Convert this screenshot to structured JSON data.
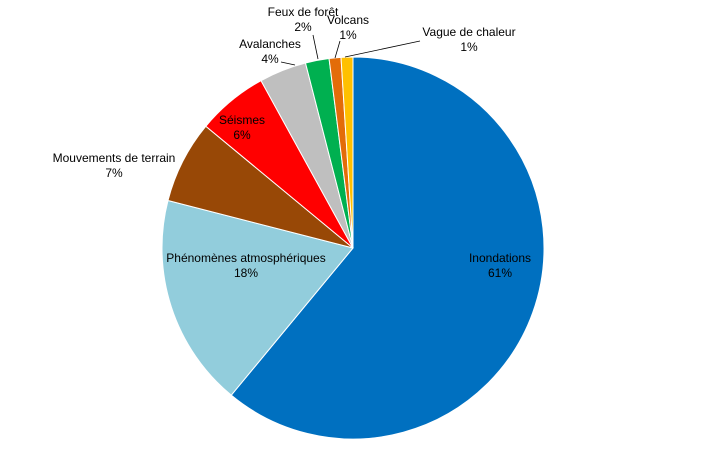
{
  "chart_data": {
    "type": "pie",
    "title": "",
    "slices": [
      {
        "name": "Inondations",
        "value": 61,
        "label": "61%",
        "color": "#0070C0"
      },
      {
        "name": "Phénomènes atmosphériques",
        "value": 18,
        "label": "18%",
        "color": "#92CDDC"
      },
      {
        "name": "Mouvements de terrain",
        "value": 7,
        "label": "7%",
        "color": "#984806"
      },
      {
        "name": "Séismes",
        "value": 6,
        "label": "6%",
        "color": "#FF0000"
      },
      {
        "name": "Avalanches",
        "value": 4,
        "label": "4%",
        "color": "#BFBFBF"
      },
      {
        "name": "Feux de forêt",
        "value": 2,
        "label": "2%",
        "color": "#00B050"
      },
      {
        "name": "Volcans",
        "value": 1,
        "label": "1%",
        "color": "#E36C09"
      },
      {
        "name": "Vague de chaleur",
        "value": 1,
        "label": "1%",
        "color": "#FFC000"
      }
    ]
  }
}
